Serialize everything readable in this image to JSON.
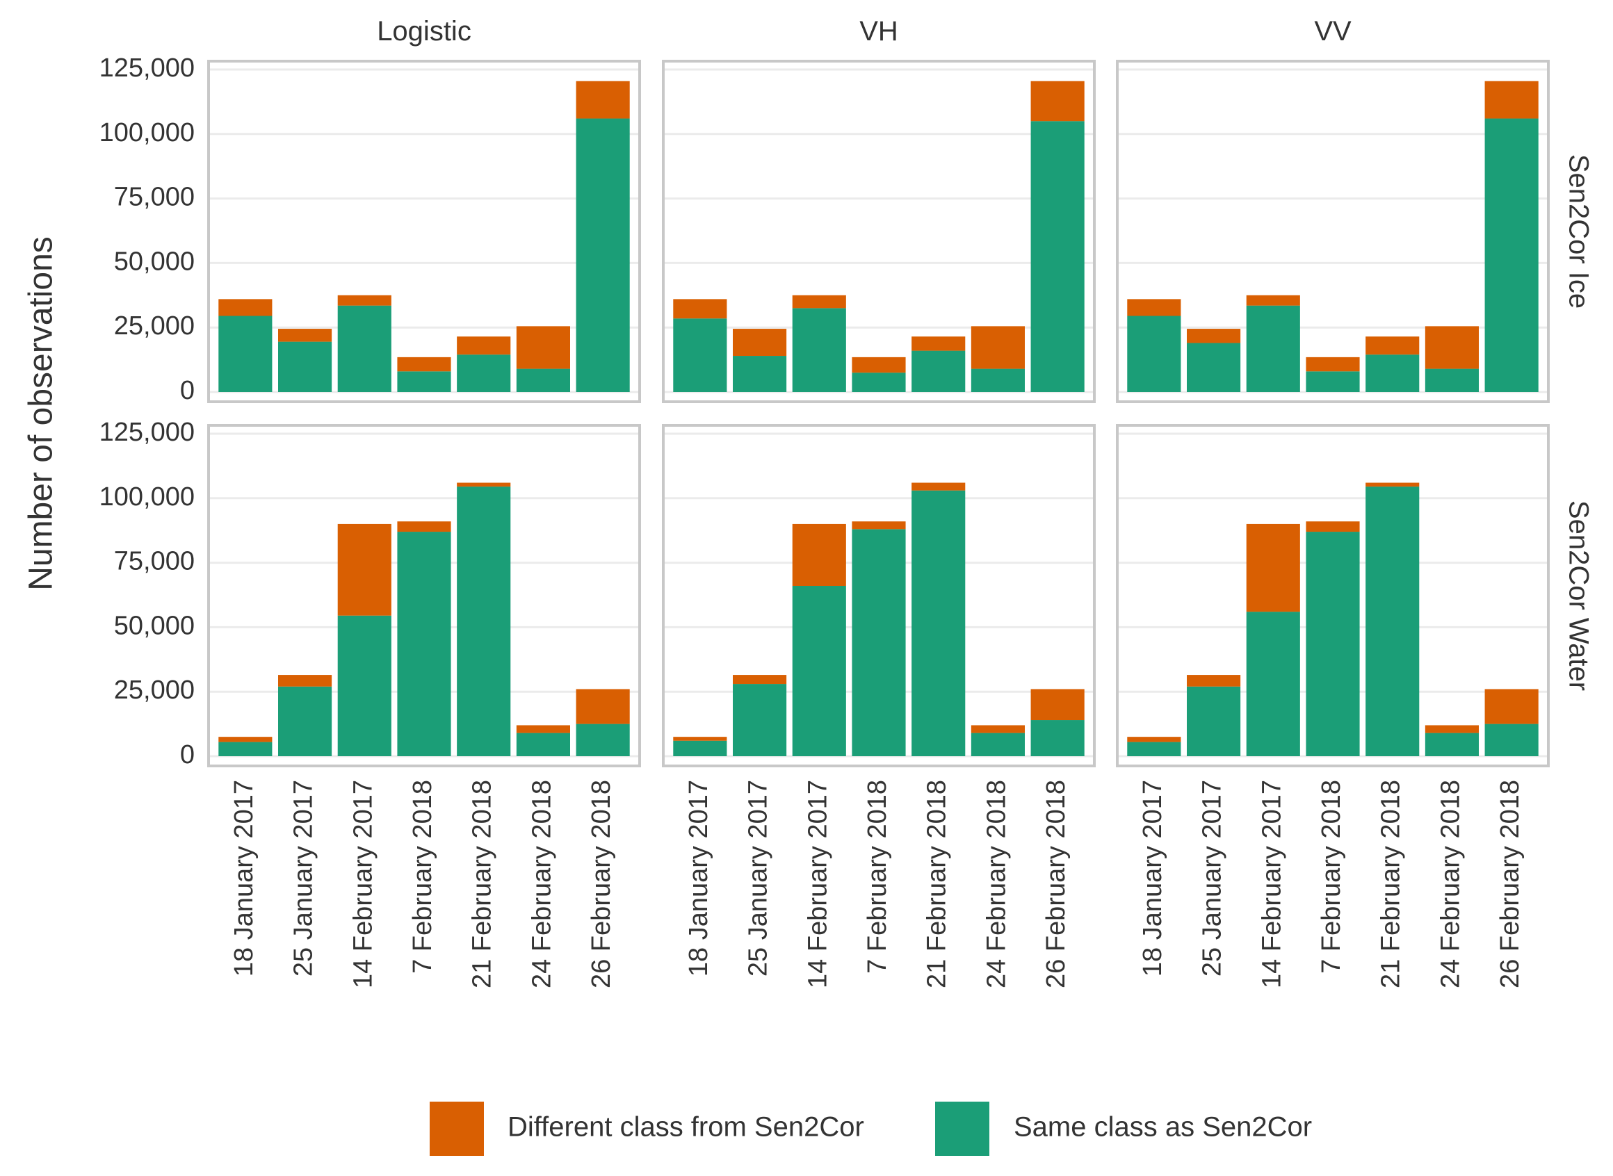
{
  "chart_data": {
    "type": "bar",
    "stacked": true,
    "ylabel": "Number of observations",
    "xlabel": "",
    "ylim": [
      0,
      125000
    ],
    "yticks": [
      0,
      25000,
      50000,
      75000,
      100000,
      125000
    ],
    "ytick_labels": [
      "0",
      "25,000",
      "50,000",
      "75,000",
      "100,000",
      "125,000"
    ],
    "categories": [
      "18 January 2017",
      "25 January 2017",
      "14 February 2017",
      "7 February 2018",
      "21 February 2018",
      "24 February 2018",
      "26 February 2018"
    ],
    "facet_columns": [
      "Logistic",
      "VH",
      "VV"
    ],
    "facet_rows": [
      "Sen2Cor Ice",
      "Sen2Cor Water"
    ],
    "legend": [
      {
        "name": "Different class from Sen2Cor",
        "color": "#d95f02"
      },
      {
        "name": "Same class as Sen2Cor",
        "color": "#1b9e77"
      }
    ],
    "legend_position": "bottom",
    "panels": [
      {
        "column": "Logistic",
        "row": "Sen2Cor Ice",
        "series": [
          {
            "name": "Same class as Sen2Cor",
            "values": [
              29500,
              19500,
              33500,
              8000,
              14500,
              9000,
              106000
            ]
          },
          {
            "name": "Different class from Sen2Cor",
            "values": [
              6500,
              5000,
              4000,
              5500,
              7000,
              16500,
              14500
            ]
          }
        ]
      },
      {
        "column": "VH",
        "row": "Sen2Cor Ice",
        "series": [
          {
            "name": "Same class as Sen2Cor",
            "values": [
              28500,
              14000,
              32500,
              7500,
              16000,
              9000,
              105000
            ]
          },
          {
            "name": "Different class from Sen2Cor",
            "values": [
              7500,
              10500,
              5000,
              6000,
              5500,
              16500,
              15500
            ]
          }
        ]
      },
      {
        "column": "VV",
        "row": "Sen2Cor Ice",
        "series": [
          {
            "name": "Same class as Sen2Cor",
            "values": [
              29500,
              19000,
              33500,
              8000,
              14500,
              9000,
              106000
            ]
          },
          {
            "name": "Different class from Sen2Cor",
            "values": [
              6500,
              5500,
              4000,
              5500,
              7000,
              16500,
              14500
            ]
          }
        ]
      },
      {
        "column": "Logistic",
        "row": "Sen2Cor Water",
        "series": [
          {
            "name": "Same class as Sen2Cor",
            "values": [
              5500,
              27000,
              54500,
              87000,
              104500,
              9000,
              12500
            ]
          },
          {
            "name": "Different class from Sen2Cor",
            "values": [
              2000,
              4500,
              35500,
              4000,
              1500,
              3000,
              13500
            ]
          }
        ]
      },
      {
        "column": "VH",
        "row": "Sen2Cor Water",
        "series": [
          {
            "name": "Same class as Sen2Cor",
            "values": [
              6000,
              28000,
              66000,
              88000,
              103000,
              9000,
              14000
            ]
          },
          {
            "name": "Different class from Sen2Cor",
            "values": [
              1500,
              3500,
              24000,
              3000,
              3000,
              3000,
              12000
            ]
          }
        ]
      },
      {
        "column": "VV",
        "row": "Sen2Cor Water",
        "series": [
          {
            "name": "Same class as Sen2Cor",
            "values": [
              5500,
              27000,
              56000,
              87000,
              104500,
              9000,
              12500
            ]
          },
          {
            "name": "Different class from Sen2Cor",
            "values": [
              2000,
              4500,
              34000,
              4000,
              1500,
              3000,
              13500
            ]
          }
        ]
      }
    ]
  }
}
